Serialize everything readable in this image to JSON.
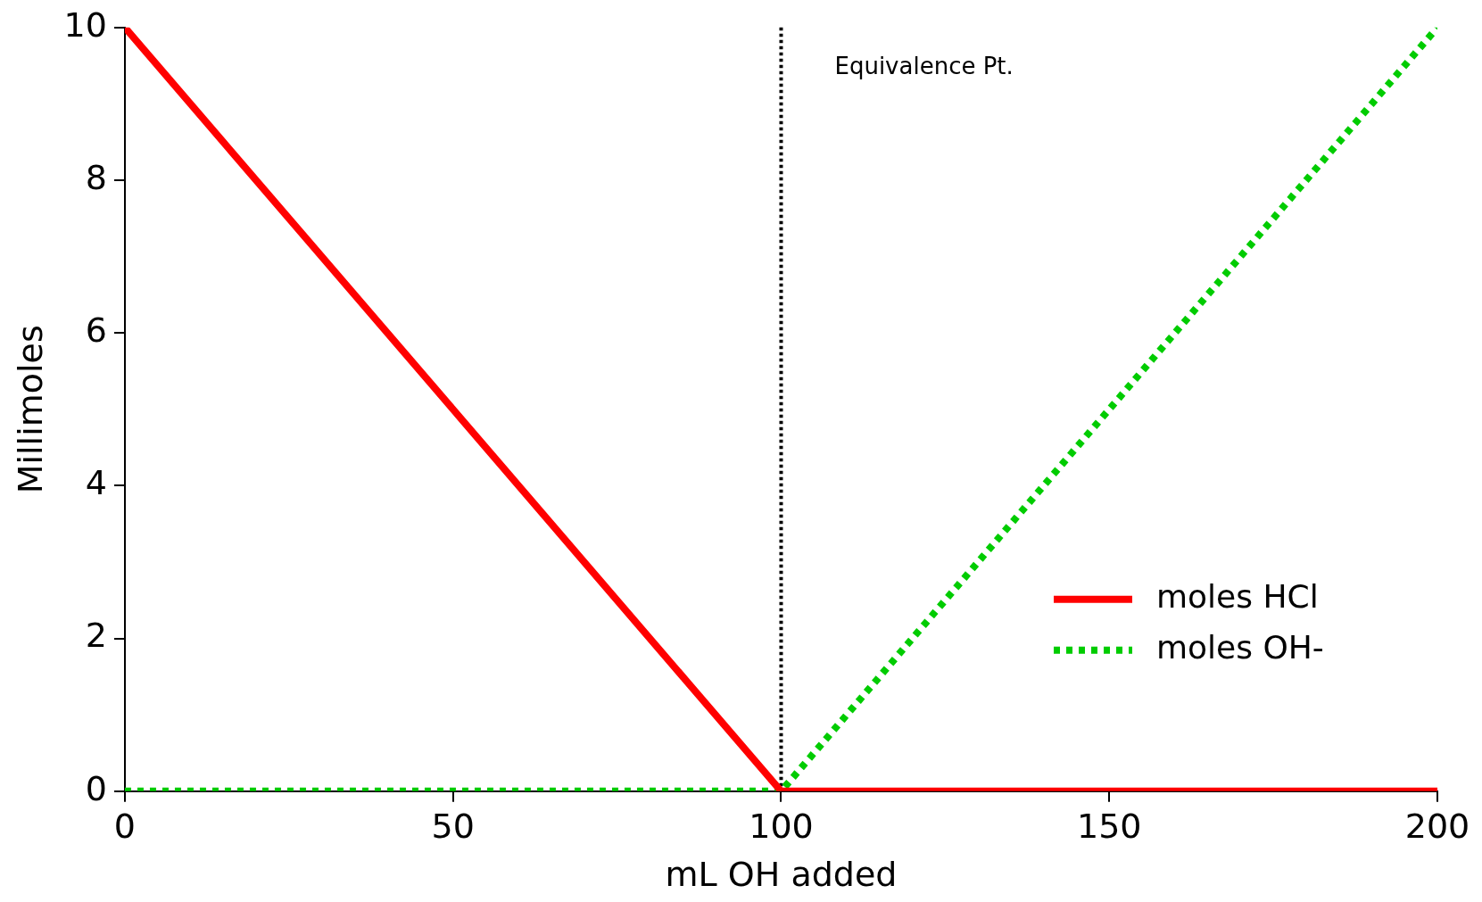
{
  "chart_data": {
    "type": "line",
    "xlabel": "mL OH added",
    "ylabel": "Millimoles",
    "x": [
      0,
      100,
      200
    ],
    "series": [
      {
        "name": "moles HCl",
        "color": "#ff0000",
        "line_style": "solid",
        "values": [
          10,
          0,
          0
        ]
      },
      {
        "name": "moles OH-",
        "color": "#00cc00",
        "line_style": "dotted",
        "values": [
          0,
          0,
          10
        ]
      }
    ],
    "xlim": [
      0,
      200
    ],
    "xticks": [
      0,
      50,
      100,
      150,
      200
    ],
    "ylim": [
      0,
      10
    ],
    "yticks": [
      0,
      2,
      4,
      6,
      8,
      10
    ],
    "ref_lines": [
      {
        "axis": "x",
        "value": 100,
        "label": "Equivalence Pt.",
        "color": "#000000",
        "line_style": "dotted"
      }
    ],
    "grid": false,
    "legend": "bottom right",
    "marker": "none"
  }
}
